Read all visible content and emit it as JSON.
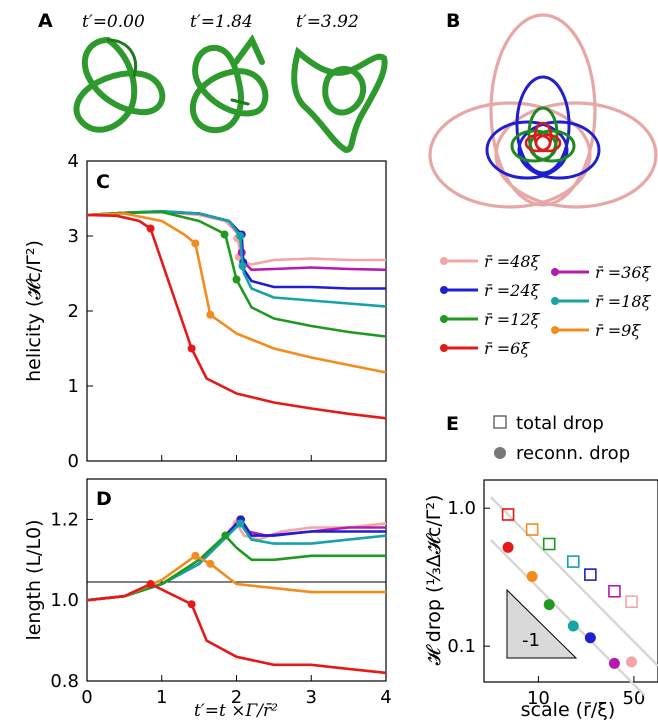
{
  "panels": {
    "A": {
      "letter": "A",
      "time_labels": [
        "t′=0.00",
        "t′=1.84",
        "t′=3.92"
      ],
      "knot_color": "#2e9a2e"
    },
    "B": {
      "letter": "B"
    },
    "C": {
      "letter": "C"
    },
    "D": {
      "letter": "D"
    },
    "E": {
      "letter": "E"
    }
  },
  "legend": {
    "entries": [
      {
        "label": "r̄ =48ξ",
        "color": "#f4a6a6"
      },
      {
        "label": "r̄ =36ξ",
        "color": "#b31bb3"
      },
      {
        "label": "r̄ =24ξ",
        "color": "#1f1fd1"
      },
      {
        "label": "r̄ =18ξ",
        "color": "#16a3a3"
      },
      {
        "label": "r̄ =12ξ",
        "color": "#1f9a1f"
      },
      {
        "label": "r̄ =9ξ",
        "color": "#f28c1c"
      },
      {
        "label": "r̄ =6ξ",
        "color": "#e61919"
      }
    ]
  },
  "chart_data": [
    {
      "panel": "C",
      "type": "line",
      "ylabel": "helicity (𝓗c/Γ²)",
      "xlim": [
        0,
        4
      ],
      "ylim": [
        0,
        4
      ],
      "yticks": [
        0,
        1,
        2,
        3,
        4
      ],
      "series": [
        {
          "name": "r̄ =48ξ",
          "color": "#f4a6a6",
          "x": [
            0,
            0.5,
            1.0,
            1.5,
            1.85,
            2.0,
            2.02,
            2.05,
            2.1,
            2.2,
            2.5,
            3.0,
            3.5,
            4.0
          ],
          "y": [
            3.28,
            3.31,
            3.32,
            3.28,
            3.2,
            3.05,
            2.95,
            2.75,
            2.65,
            2.62,
            2.68,
            2.7,
            2.68,
            2.68
          ],
          "dots": [
            [
              2.01,
              2.97
            ],
            [
              2.03,
              2.72
            ]
          ]
        },
        {
          "name": "r̄ =36ξ",
          "color": "#b31bb3",
          "x": [
            0,
            0.5,
            1.0,
            1.5,
            1.9,
            2.05,
            2.07,
            2.1,
            2.2,
            2.5,
            3.0,
            3.5,
            4.0
          ],
          "y": [
            3.28,
            3.31,
            3.32,
            3.3,
            3.2,
            3.0,
            2.78,
            2.65,
            2.55,
            2.56,
            2.58,
            2.56,
            2.55
          ],
          "dots": [
            [
              2.07,
              2.78
            ]
          ]
        },
        {
          "name": "r̄ =24ξ",
          "color": "#1f1fd1",
          "x": [
            0,
            0.5,
            1.0,
            1.5,
            1.9,
            2.07,
            2.09,
            2.1,
            2.2,
            2.5,
            3.0,
            3.5,
            4.0
          ],
          "y": [
            3.28,
            3.31,
            3.33,
            3.3,
            3.2,
            3.02,
            2.66,
            2.55,
            2.4,
            2.32,
            2.32,
            2.3,
            2.3
          ],
          "dots": [
            [
              2.07,
              3.02
            ],
            [
              2.09,
              2.65
            ]
          ]
        },
        {
          "name": "r̄ =18ξ",
          "color": "#16a3a3",
          "x": [
            0,
            0.5,
            1.0,
            1.5,
            1.9,
            2.05,
            2.08,
            2.1,
            2.2,
            2.5,
            3.0,
            3.5,
            4.0
          ],
          "y": [
            3.28,
            3.31,
            3.33,
            3.3,
            3.2,
            3.0,
            2.6,
            2.5,
            2.3,
            2.18,
            2.14,
            2.1,
            2.06
          ],
          "dots": [
            [
              2.05,
              3.0
            ],
            [
              2.08,
              2.6
            ]
          ]
        },
        {
          "name": "r̄ =12ξ",
          "color": "#1f9a1f",
          "x": [
            0,
            0.5,
            1.0,
            1.5,
            1.8,
            1.85,
            2.0,
            2.2,
            2.5,
            3.0,
            3.5,
            4.0
          ],
          "y": [
            3.28,
            3.31,
            3.32,
            3.2,
            3.05,
            3.02,
            2.42,
            2.05,
            1.9,
            1.8,
            1.72,
            1.66
          ],
          "dots": [
            [
              1.84,
              3.02
            ],
            [
              2.0,
              2.42
            ]
          ]
        },
        {
          "name": "r̄ =9ξ",
          "color": "#f28c1c",
          "x": [
            0,
            0.5,
            1.0,
            1.3,
            1.45,
            1.65,
            2.0,
            2.5,
            3.0,
            3.5,
            4.0
          ],
          "y": [
            3.28,
            3.3,
            3.2,
            3.02,
            2.9,
            1.95,
            1.7,
            1.5,
            1.38,
            1.28,
            1.18
          ],
          "dots": [
            [
              1.45,
              2.9
            ],
            [
              1.65,
              1.95
            ]
          ]
        },
        {
          "name": "r̄ =6ξ",
          "color": "#e61919",
          "x": [
            0,
            0.4,
            0.7,
            0.85,
            1.4,
            1.6,
            2.0,
            2.5,
            3.0,
            3.5,
            4.0
          ],
          "y": [
            3.28,
            3.27,
            3.2,
            3.1,
            1.5,
            1.1,
            0.9,
            0.78,
            0.7,
            0.63,
            0.57
          ],
          "dots": [
            [
              0.85,
              3.1
            ],
            [
              1.4,
              1.5
            ]
          ]
        }
      ]
    },
    {
      "panel": "D",
      "type": "line",
      "xlabel": "t′=t ×Γ/r̄²",
      "ylabel": "length (L/L0)",
      "xlim": [
        0,
        4
      ],
      "ylim": [
        0.8,
        1.3
      ],
      "xticks": [
        0,
        1,
        2,
        3,
        4
      ],
      "yticks": [
        0.8,
        1.0,
        1.2
      ],
      "series": [
        {
          "name": "r̄ =48ξ",
          "color": "#f4a6a6",
          "x": [
            0,
            0.5,
            1.0,
            1.5,
            2.0,
            2.1,
            2.3,
            2.6,
            3.0,
            3.5,
            4.0
          ],
          "y": [
            1.0,
            1.01,
            1.04,
            1.09,
            1.19,
            1.16,
            1.15,
            1.17,
            1.18,
            1.18,
            1.19
          ],
          "dots": [
            [
              2.0,
              1.19
            ]
          ]
        },
        {
          "name": "r̄ =36ξ",
          "color": "#b31bb3",
          "x": [
            0,
            0.5,
            1.0,
            1.5,
            2.05,
            2.15,
            2.4,
            3.0,
            3.5,
            4.0
          ],
          "y": [
            1.0,
            1.01,
            1.04,
            1.09,
            1.2,
            1.17,
            1.16,
            1.17,
            1.18,
            1.18
          ],
          "dots": [
            [
              2.05,
              1.2
            ]
          ]
        },
        {
          "name": "r̄ =24ξ",
          "color": "#1f1fd1",
          "x": [
            0,
            0.5,
            1.0,
            1.5,
            2.06,
            2.2,
            2.5,
            3.0,
            3.5,
            4.0
          ],
          "y": [
            1.0,
            1.01,
            1.04,
            1.09,
            1.2,
            1.16,
            1.16,
            1.17,
            1.17,
            1.17
          ],
          "dots": [
            [
              2.06,
              1.2
            ]
          ]
        },
        {
          "name": "r̄ =18ξ",
          "color": "#16a3a3",
          "x": [
            0,
            0.5,
            1.0,
            1.5,
            2.05,
            2.2,
            2.5,
            3.0,
            3.5,
            4.0
          ],
          "y": [
            1.0,
            1.01,
            1.04,
            1.09,
            1.19,
            1.15,
            1.14,
            1.14,
            1.15,
            1.16
          ],
          "dots": [
            [
              2.05,
              1.19
            ]
          ]
        },
        {
          "name": "r̄ =12ξ",
          "color": "#1f9a1f",
          "x": [
            0,
            0.5,
            1.0,
            1.5,
            1.85,
            2.0,
            2.2,
            2.5,
            3.0,
            3.5,
            4.0
          ],
          "y": [
            1.0,
            1.01,
            1.04,
            1.1,
            1.16,
            1.13,
            1.1,
            1.1,
            1.11,
            1.11,
            1.11
          ],
          "dots": [
            [
              1.85,
              1.16
            ]
          ]
        },
        {
          "name": "r̄ =9ξ",
          "color": "#f28c1c",
          "x": [
            0,
            0.5,
            1.0,
            1.45,
            1.65,
            2.0,
            2.5,
            3.0,
            3.5,
            4.0
          ],
          "y": [
            1.0,
            1.01,
            1.05,
            1.11,
            1.09,
            1.04,
            1.03,
            1.02,
            1.02,
            1.02
          ],
          "dots": [
            [
              1.45,
              1.11
            ],
            [
              1.65,
              1.09
            ]
          ]
        },
        {
          "name": "r̄ =6ξ",
          "color": "#e61919",
          "x": [
            0,
            0.5,
            0.85,
            1.4,
            1.6,
            2.0,
            2.5,
            3.0,
            3.5,
            4.0
          ],
          "y": [
            1.0,
            1.01,
            1.04,
            0.99,
            0.9,
            0.86,
            0.84,
            0.84,
            0.83,
            0.82
          ],
          "dots": [
            [
              0.85,
              1.04
            ],
            [
              1.4,
              0.99
            ]
          ]
        }
      ]
    },
    {
      "panel": "E",
      "type": "scatter",
      "xlabel": "scale (r̄/ξ)",
      "ylabel": "𝓗 drop (⅓Δ𝓗c/Γ²)",
      "xscale": "log",
      "yscale": "log",
      "xlim": [
        4,
        75
      ],
      "ylim": [
        0.055,
        1.6
      ],
      "xticks": [
        10,
        50
      ],
      "yticks": [
        0.1,
        1.0
      ],
      "legend": {
        "entries": [
          {
            "label": "total drop",
            "marker": "open-square"
          },
          {
            "label": "reconn. drop",
            "marker": "filled-circle"
          }
        ]
      },
      "slope_label": "-1",
      "points": [
        {
          "scale": 6,
          "total": 0.9,
          "reconn": 0.52,
          "color": "#e61919"
        },
        {
          "scale": 9,
          "total": 0.7,
          "reconn": 0.32,
          "color": "#f28c1c"
        },
        {
          "scale": 12,
          "total": 0.55,
          "reconn": 0.2,
          "color": "#1f9a1f"
        },
        {
          "scale": 18,
          "total": 0.41,
          "reconn": 0.14,
          "color": "#16a3a3"
        },
        {
          "scale": 24,
          "total": 0.33,
          "reconn": 0.115,
          "color": "#1f1fd1"
        },
        {
          "scale": 36,
          "total": 0.25,
          "reconn": 0.075,
          "color": "#b31bb3"
        },
        {
          "scale": 48,
          "total": 0.21,
          "reconn": 0.077,
          "color": "#f4a6a6"
        }
      ]
    }
  ]
}
